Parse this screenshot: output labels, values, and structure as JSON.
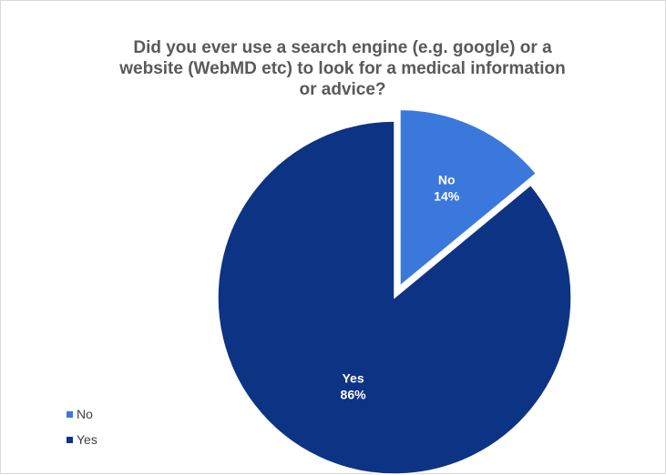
{
  "chart_data": {
    "type": "pie",
    "title_lines": [
      "Did you ever use a search engine (e.g. google) or a",
      "website (WebMD etc) to look for a medical information",
      "or advice?"
    ],
    "slices": [
      {
        "name": "No",
        "value": 14,
        "label": "14%",
        "color": "#3b78dc",
        "exploded": true
      },
      {
        "name": "Yes",
        "value": 86,
        "label": "86%",
        "color": "#0d3384",
        "exploded": false
      }
    ],
    "legend_position": "bottom-left"
  }
}
